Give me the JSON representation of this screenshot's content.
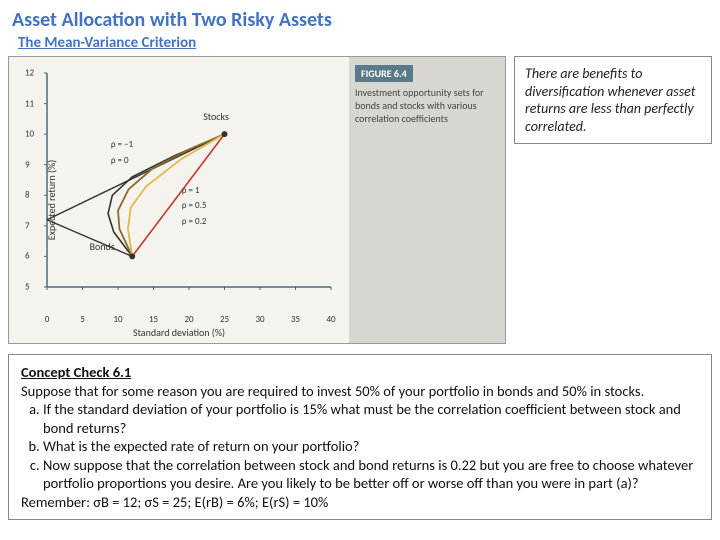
{
  "title": "Asset Allocation with Two Risky Assets",
  "subtitle": "The Mean-Variance Criterion",
  "figure": {
    "label": "FIGURE 6.4",
    "caption": "Investment opportunity sets for bonds and stocks with various correlation coefficients",
    "chart": {
      "ylabel": "Expected return (%)",
      "xlabel": "Standard deviation (%)",
      "xlim": [
        0,
        40
      ],
      "ylim": [
        5,
        12
      ],
      "xticks": [
        0,
        5,
        10,
        15,
        20,
        25,
        30,
        35,
        40
      ],
      "yticks": [
        5,
        6,
        7,
        8,
        9,
        10,
        11,
        12
      ],
      "axis_color": "#4a6a7a",
      "bg": "#f5f3ed",
      "stocks_label": "Stocks",
      "bonds_label": "Bonds",
      "rho_labels": [
        "ρ = −1",
        "ρ = 0",
        "ρ = 1",
        "ρ = 0.5",
        "ρ = 0.2"
      ],
      "curves": {
        "rho_neg1_up": {
          "color": "#333333",
          "width": 1.4,
          "pts": [
            [
              0,
              7.2
            ],
            [
              25,
              10
            ]
          ]
        },
        "rho_neg1_dn": {
          "color": "#333333",
          "width": 1.4,
          "pts": [
            [
              0,
              7.2
            ],
            [
              12,
              6
            ]
          ]
        },
        "rho_0": {
          "color": "#333333",
          "width": 1.6,
          "pts": [
            [
              12,
              6
            ],
            [
              9.4,
              6.8
            ],
            [
              8.6,
              7.4
            ],
            [
              9.2,
              8.0
            ],
            [
              12,
              8.6
            ],
            [
              18,
              9.3
            ],
            [
              25,
              10
            ]
          ]
        },
        "rho_1": {
          "color": "#c0392b",
          "width": 1.6,
          "pts": [
            [
              12,
              6
            ],
            [
              25,
              10
            ]
          ]
        },
        "rho_05": {
          "color": "#e5b84a",
          "width": 1.8,
          "pts": [
            [
              12,
              6
            ],
            [
              11.4,
              6.9
            ],
            [
              11.8,
              7.6
            ],
            [
              14,
              8.3
            ],
            [
              19,
              9.2
            ],
            [
              25,
              10
            ]
          ]
        },
        "rho_02": {
          "color": "#8a6a2a",
          "width": 1.8,
          "pts": [
            [
              12,
              6
            ],
            [
              10.2,
              6.9
            ],
            [
              10.0,
              7.5
            ],
            [
              11.5,
              8.2
            ],
            [
              15,
              8.9
            ],
            [
              20,
              9.5
            ],
            [
              25,
              10
            ]
          ]
        }
      },
      "points": {
        "stocks": {
          "x": 25,
          "y": 10,
          "color": "#333"
        },
        "bonds": {
          "x": 12,
          "y": 6,
          "color": "#333"
        }
      }
    }
  },
  "callout": "There are benefits to diversification whenever asset returns are less than perfectly correlated.",
  "concept": {
    "title": "Concept Check 6.1",
    "intro": "Suppose that for some reason you are required to invest 50% of your portfolio in bonds and 50% in stocks.",
    "a": "If the standard deviation of your portfolio is 15% what must be the correlation coefficient between stock and bond returns?",
    "b": "What is the expected rate of return on your portfolio?",
    "c": "Now suppose that the correlation between stock and bond returns is 0.22 but you are free to choose whatever portfolio proportions you desire. Are you likely to be better off or worse off than you were in part (a)?",
    "remember": "Remember: σB = 12; σS = 25; E(rB) = 6%; E(rS) = 10%"
  }
}
